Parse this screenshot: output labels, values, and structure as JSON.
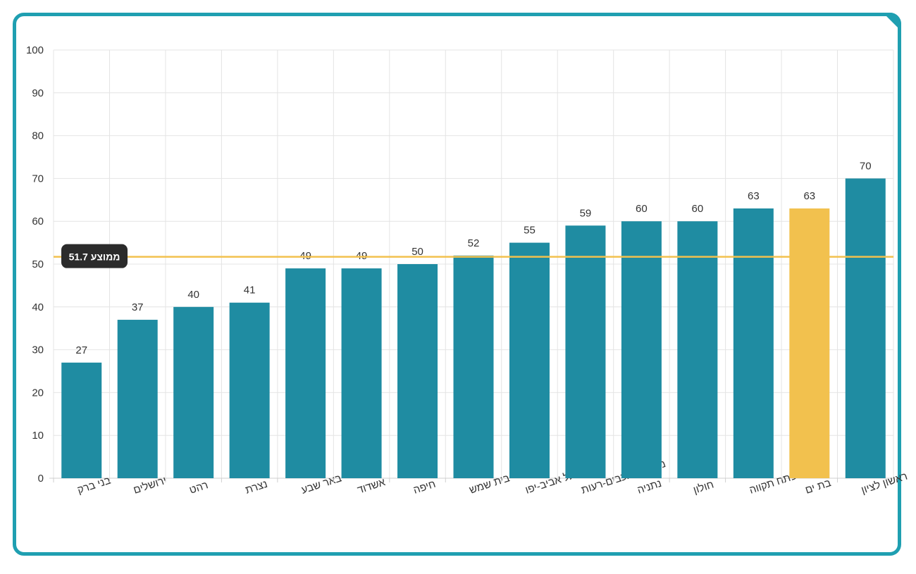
{
  "colors": {
    "frame": "#1f9fb1",
    "bar": "#1f8ca2",
    "highlight_bar": "#f2c14e",
    "average_line": "#f2c14e",
    "average_label_bg": "#2b2b2b",
    "grid": "#e4e4e4"
  },
  "chart_data": {
    "type": "bar",
    "title": "",
    "xlabel": "",
    "ylabel": "",
    "ylim": [
      0,
      100
    ],
    "yticks": [
      0,
      10,
      20,
      30,
      40,
      50,
      60,
      70,
      80,
      90,
      100
    ],
    "grid": true,
    "show_value_labels": true,
    "categories": [
      "בני ברק",
      "ירושלים",
      "רהט",
      "נצרת",
      "באר שבע",
      "אשדוד",
      "חיפה",
      "בית שמש",
      "תל אביב-יפו",
      "מודיעין-מכבים-רעות",
      "נתניה",
      "חולון",
      "פתח תקווה",
      "בת ים",
      "ראשון לציון"
    ],
    "values": [
      27,
      37,
      40,
      41,
      49,
      49,
      50,
      52,
      55,
      59,
      60,
      60,
      63,
      63,
      70
    ],
    "highlight_category": "בת ים",
    "average": {
      "value": 51.7,
      "label": "ממוצע 51.7"
    }
  }
}
